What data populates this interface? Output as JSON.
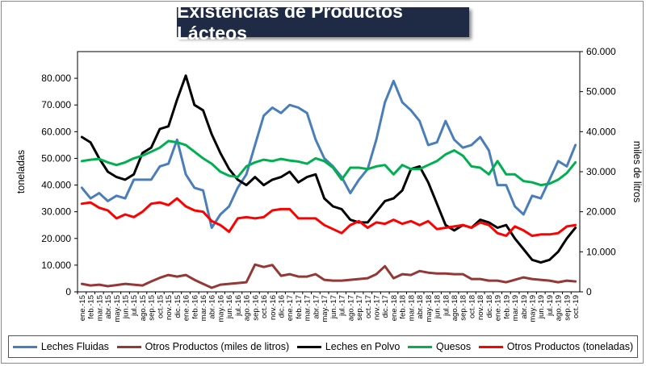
{
  "chart_data": {
    "type": "line",
    "title": "Existencias de Productos Lácteos",
    "ylabel_left": "toneladas",
    "ylabel_right": "miles de litros",
    "ylim_left": [
      0,
      90000
    ],
    "ylim_right": [
      0,
      60000
    ],
    "y_ticks_left": [
      "0",
      "10.000",
      "20.000",
      "30.000",
      "40.000",
      "50.000",
      "60.000",
      "70.000",
      "80.000"
    ],
    "y_ticks_right": [
      "0",
      "10.000",
      "20.000",
      "30.000",
      "40.000",
      "50.000",
      "60.000"
    ],
    "y_tick_values_left": [
      0,
      10000,
      20000,
      30000,
      40000,
      50000,
      60000,
      70000,
      80000
    ],
    "y_tick_values_right": [
      0,
      10000,
      20000,
      30000,
      40000,
      50000,
      60000
    ],
    "categories": [
      "ene.-15",
      "feb.-15",
      "mar.-15",
      "abr.-15",
      "may.-15",
      "jun.-15",
      "jul.-15",
      "ago.-15",
      "sep.-15",
      "oct.-15",
      "nov.-15",
      "dic.-15",
      "ene.-16",
      "feb.-16",
      "mar.-16",
      "abr.-16",
      "may.-16",
      "jun.-16",
      "jul.-16",
      "ago.-16",
      "sep.-16",
      "oct.-16",
      "nov.-16",
      "dic.-16",
      "ene.-17",
      "feb.-17",
      "mar.-17",
      "abr.-17",
      "may.-17",
      "jun.-17",
      "jul.-17",
      "ago.-17",
      "sep.-17",
      "oct.-17",
      "nov.-17",
      "dic.-17",
      "ene.-18",
      "feb.-18",
      "mar.-18",
      "abr.-18",
      "may.-18",
      "jun.-18",
      "jul.-18",
      "ago.-18",
      "sep.-18",
      "oct.-18",
      "nov.-18",
      "dic.-18",
      "ene.-19",
      "feb.-19",
      "mar.-19",
      "abr.-19",
      "may.-19",
      "jun.-19",
      "jul.-19",
      "ago.-19",
      "sep.-19",
      "oct.-19"
    ],
    "series": [
      {
        "name": "Leches Fluidas",
        "axis": "left",
        "color": "#4a7ebb",
        "values": [
          39000,
          35000,
          37000,
          34000,
          36000,
          35000,
          42000,
          42000,
          42000,
          47000,
          48000,
          57000,
          44000,
          39000,
          38000,
          24000,
          29000,
          32000,
          39000,
          44000,
          55000,
          66000,
          69000,
          67000,
          70000,
          69000,
          67000,
          57000,
          50000,
          47000,
          43000,
          37000,
          42000,
          46000,
          57000,
          71000,
          79000,
          71000,
          68000,
          64000,
          55000,
          56000,
          64000,
          57000,
          54000,
          55000,
          58000,
          53000,
          40000,
          40000,
          32000,
          29000,
          36000,
          35000,
          42000,
          49000,
          47000,
          55000
        ]
      },
      {
        "name": "Otros Productos (miles de litros)",
        "axis": "right",
        "color": "#953735",
        "values": [
          2000,
          1600,
          1800,
          1400,
          1700,
          2000,
          1800,
          1600,
          2600,
          3500,
          4200,
          3800,
          4200,
          3000,
          2000,
          1000,
          1800,
          2000,
          2200,
          2400,
          6800,
          6200,
          6700,
          4000,
          4400,
          3800,
          3800,
          4400,
          3000,
          2800,
          2800,
          3000,
          3200,
          3400,
          4400,
          6400,
          3400,
          4400,
          4200,
          5200,
          4800,
          4600,
          4600,
          4400,
          4400,
          3200,
          3200,
          2800,
          2800,
          2400,
          3000,
          3600,
          3200,
          3000,
          2800,
          2400,
          2800,
          2600
        ]
      },
      {
        "name": "Leches en Polvo",
        "axis": "left",
        "color": "#000000",
        "values": [
          58000,
          56000,
          50000,
          45000,
          43000,
          42000,
          44000,
          52000,
          54000,
          61000,
          62000,
          72000,
          81000,
          70000,
          68000,
          59000,
          52000,
          46000,
          42000,
          40000,
          43000,
          40000,
          42000,
          43000,
          45000,
          41000,
          43000,
          44000,
          35000,
          32000,
          31000,
          27000,
          26000,
          26000,
          30000,
          34000,
          35000,
          38000,
          46000,
          47000,
          41000,
          33000,
          25000,
          23000,
          25000,
          24000,
          27000,
          26000,
          24000,
          25000,
          20000,
          16000,
          12000,
          11000,
          12000,
          15000,
          20000,
          24000
        ]
      },
      {
        "name": "Quesos",
        "axis": "left",
        "color": "#00b050",
        "values": [
          49000,
          49500,
          49800,
          48500,
          47500,
          48500,
          50000,
          51000,
          52500,
          54000,
          56500,
          56000,
          55000,
          52500,
          50000,
          48000,
          45000,
          43500,
          43000,
          47000,
          48500,
          49500,
          49000,
          49800,
          49200,
          48800,
          48000,
          50000,
          49000,
          46500,
          42000,
          46500,
          46500,
          46000,
          47000,
          47500,
          44000,
          47500,
          46000,
          46000,
          47500,
          49000,
          51500,
          53000,
          51000,
          47000,
          46500,
          44000,
          49000,
          44000,
          44000,
          41500,
          41000,
          40000,
          40500,
          42000,
          44500,
          48500
        ]
      },
      {
        "name": "Otros Productos (toneladas)",
        "axis": "left",
        "color": "#ff0000",
        "values": [
          33000,
          33500,
          31500,
          30500,
          27500,
          29000,
          28000,
          30000,
          33000,
          33500,
          32500,
          35000,
          32000,
          30500,
          30000,
          26500,
          25000,
          22500,
          27500,
          28000,
          27500,
          28000,
          30500,
          31000,
          31000,
          27500,
          27500,
          27500,
          25000,
          23500,
          22000,
          25000,
          26500,
          24000,
          26000,
          25500,
          27000,
          25500,
          26500,
          25000,
          26500,
          23500,
          24000,
          24500,
          25000,
          24000,
          26000,
          25000,
          22000,
          21000,
          24500,
          23000,
          21000,
          21500,
          21500,
          22000,
          24500,
          25000
        ]
      }
    ]
  }
}
